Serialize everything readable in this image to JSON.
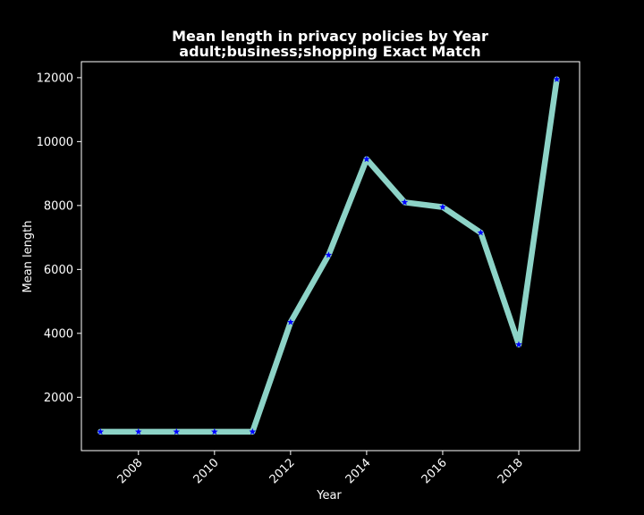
{
  "chart_data": {
    "type": "line",
    "title": "Mean length in privacy policies by Year",
    "subtitle": "adult;business;shopping Exact Match",
    "xlabel": "Year",
    "ylabel": "Mean length",
    "x": [
      2007,
      2008,
      2009,
      2010,
      2011,
      2012,
      2013,
      2014,
      2015,
      2016,
      2017,
      2018,
      2019
    ],
    "values": [
      920,
      920,
      920,
      920,
      920,
      4350,
      6450,
      9450,
      8100,
      7950,
      7150,
      3650,
      11950
    ],
    "xlim": [
      2006.5,
      2019.6
    ],
    "ylim": [
      330,
      12500
    ],
    "xticks": [
      2008,
      2010,
      2012,
      2014,
      2016,
      2018
    ],
    "yticks": [
      2000,
      4000,
      6000,
      8000,
      10000,
      12000
    ],
    "x_tick_rotation": 45,
    "grid": false,
    "line_color": "#8dd3c7",
    "marker": "star",
    "marker_color": "#0000ff",
    "background": "#000000"
  }
}
